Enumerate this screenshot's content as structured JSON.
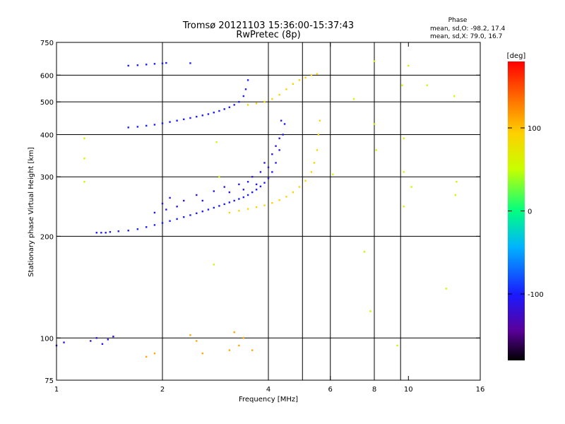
{
  "chart_data": {
    "type": "scatter",
    "title": "Tromsø 20121103 15:36:00-15:37:43",
    "subtitle": "RwPretec (8p)",
    "xlabel": "Frequency [MHz]",
    "ylabel": "Stationary phase Virtual Height [km]",
    "x_scale": "log",
    "y_scale": "log",
    "xlim": [
      1,
      16
    ],
    "ylim": [
      75,
      750
    ],
    "x_ticks": [
      1,
      2,
      4,
      6,
      8,
      10,
      16
    ],
    "x_tick_labels": [
      "1",
      "2",
      "4",
      "6",
      "8",
      "10",
      "16"
    ],
    "x_grid": [
      2,
      4,
      5,
      6,
      8,
      9.5
    ],
    "y_ticks": [
      75,
      100,
      200,
      300,
      400,
      500,
      600,
      750
    ],
    "y_tick_labels": [
      "75",
      "100",
      "200",
      "300",
      "400",
      "500",
      "600",
      "750"
    ],
    "y_grid": [
      100,
      200,
      300,
      400,
      500,
      600
    ],
    "grid": true,
    "stats": {
      "heading": "Phase",
      "line_o": "mean, sd,O: -98.2, 17.4",
      "line_x": "mean, sd,X: 79.0, 16.7"
    },
    "colorbar": {
      "label": "[deg]",
      "range": [
        -180,
        180
      ],
      "ticks": [
        100,
        0,
        -100
      ],
      "tick_labels": [
        "100",
        "0",
        "-100"
      ],
      "colormap": "rainbow"
    },
    "series": [
      {
        "trace": "O-mode lower",
        "phase_deg": -100,
        "points": [
          [
            1.3,
            205
          ],
          [
            1.34,
            205
          ],
          [
            1.38,
            205
          ],
          [
            1.42,
            206
          ],
          [
            1.5,
            207
          ],
          [
            1.6,
            208
          ],
          [
            1.7,
            210
          ],
          [
            1.8,
            213
          ],
          [
            1.9,
            216
          ],
          [
            2.0,
            219
          ],
          [
            2.1,
            222
          ],
          [
            2.2,
            225
          ],
          [
            2.3,
            228
          ],
          [
            2.4,
            231
          ],
          [
            2.5,
            234
          ],
          [
            2.6,
            237
          ],
          [
            2.7,
            240
          ],
          [
            2.8,
            243
          ],
          [
            2.9,
            246
          ],
          [
            3.0,
            249
          ],
          [
            3.1,
            252
          ],
          [
            3.2,
            255
          ],
          [
            3.3,
            258
          ],
          [
            3.4,
            261
          ],
          [
            3.5,
            265
          ],
          [
            3.6,
            270
          ],
          [
            3.7,
            275
          ],
          [
            3.8,
            281
          ],
          [
            3.9,
            288
          ],
          [
            4.0,
            297
          ],
          [
            4.1,
            310
          ],
          [
            4.2,
            330
          ],
          [
            4.3,
            360
          ],
          [
            4.4,
            400
          ],
          [
            4.45,
            430
          ]
        ]
      },
      {
        "trace": "O-mode scatter",
        "phase_deg": -110,
        "points": [
          [
            1.9,
            235
          ],
          [
            2.0,
            250
          ],
          [
            2.05,
            240
          ],
          [
            2.1,
            260
          ],
          [
            2.2,
            245
          ],
          [
            2.3,
            255
          ],
          [
            2.5,
            265
          ],
          [
            2.6,
            255
          ],
          [
            2.8,
            272
          ],
          [
            3.0,
            280
          ],
          [
            3.1,
            270
          ],
          [
            3.3,
            285
          ],
          [
            3.4,
            275
          ],
          [
            3.5,
            290
          ],
          [
            3.6,
            300
          ],
          [
            3.7,
            285
          ],
          [
            3.8,
            310
          ],
          [
            3.9,
            330
          ],
          [
            4.0,
            320
          ],
          [
            4.1,
            350
          ],
          [
            4.2,
            370
          ],
          [
            4.3,
            390
          ],
          [
            4.35,
            440
          ]
        ]
      },
      {
        "trace": "O-mode upper",
        "phase_deg": -100,
        "points": [
          [
            1.6,
            420
          ],
          [
            1.7,
            422
          ],
          [
            1.8,
            425
          ],
          [
            1.9,
            428
          ],
          [
            2.0,
            432
          ],
          [
            2.1,
            436
          ],
          [
            2.2,
            440
          ],
          [
            2.3,
            444
          ],
          [
            2.4,
            448
          ],
          [
            2.5,
            452
          ],
          [
            2.6,
            456
          ],
          [
            2.7,
            460
          ],
          [
            2.8,
            465
          ],
          [
            2.9,
            470
          ],
          [
            3.0,
            476
          ],
          [
            3.1,
            482
          ],
          [
            3.2,
            490
          ],
          [
            3.3,
            500
          ],
          [
            3.4,
            520
          ],
          [
            3.45,
            545
          ],
          [
            3.5,
            580
          ]
        ]
      },
      {
        "trace": "O-mode top",
        "phase_deg": -100,
        "points": [
          [
            1.6,
            640
          ],
          [
            1.7,
            642
          ],
          [
            1.8,
            645
          ],
          [
            1.9,
            648
          ],
          [
            2.0,
            650
          ],
          [
            2.05,
            652
          ],
          [
            2.4,
            651
          ]
        ]
      },
      {
        "trace": "X-mode lower",
        "phase_deg": 90,
        "points": [
          [
            3.1,
            235
          ],
          [
            3.3,
            238
          ],
          [
            3.5,
            241
          ],
          [
            3.7,
            244
          ],
          [
            3.9,
            247
          ],
          [
            4.1,
            251
          ],
          [
            4.3,
            256
          ],
          [
            4.5,
            262
          ],
          [
            4.7,
            270
          ],
          [
            4.9,
            280
          ],
          [
            5.1,
            292
          ],
          [
            5.3,
            310
          ],
          [
            5.4,
            330
          ],
          [
            5.5,
            360
          ],
          [
            5.55,
            400
          ],
          [
            5.6,
            440
          ]
        ]
      },
      {
        "trace": "X-mode upper",
        "phase_deg": 90,
        "points": [
          [
            3.5,
            490
          ],
          [
            3.7,
            495
          ],
          [
            3.9,
            500
          ],
          [
            4.1,
            510
          ],
          [
            4.3,
            525
          ],
          [
            4.5,
            545
          ],
          [
            4.7,
            565
          ],
          [
            4.9,
            580
          ],
          [
            5.1,
            590
          ],
          [
            5.3,
            600
          ],
          [
            5.5,
            605
          ]
        ]
      },
      {
        "trace": "E-region",
        "phase_deg": -110,
        "points": [
          [
            1.0,
            95
          ],
          [
            1.05,
            97
          ],
          [
            1.25,
            98
          ],
          [
            1.3,
            100
          ],
          [
            1.35,
            96
          ],
          [
            1.4,
            99
          ],
          [
            1.45,
            101
          ]
        ]
      },
      {
        "trace": "E-region scatter",
        "phase_deg": 110,
        "points": [
          [
            1.8,
            88
          ],
          [
            1.9,
            90
          ],
          [
            2.4,
            102
          ],
          [
            2.5,
            98
          ],
          [
            2.6,
            90
          ],
          [
            3.1,
            92
          ],
          [
            3.2,
            104
          ],
          [
            3.3,
            95
          ],
          [
            3.4,
            100
          ],
          [
            3.6,
            92
          ]
        ]
      },
      {
        "trace": "isolated points",
        "phase_deg": 60,
        "points": [
          [
            1.2,
            390
          ],
          [
            1.2,
            340
          ],
          [
            1.2,
            290
          ],
          [
            2.85,
            380
          ],
          [
            2.9,
            300
          ],
          [
            2.8,
            165
          ],
          [
            6.1,
            305
          ],
          [
            7.0,
            510
          ],
          [
            7.5,
            180
          ],
          [
            7.8,
            120
          ],
          [
            8.0,
            430
          ],
          [
            8.1,
            360
          ],
          [
            9.3,
            95
          ],
          [
            9.7,
            390
          ],
          [
            9.7,
            310
          ],
          [
            9.7,
            245
          ],
          [
            10.2,
            280
          ],
          [
            11.3,
            560
          ],
          [
            12.8,
            140
          ],
          [
            13.5,
            520
          ],
          [
            13.7,
            290
          ],
          [
            13.6,
            265
          ],
          [
            10.0,
            640
          ],
          [
            8.0,
            660
          ],
          [
            9.6,
            560
          ]
        ]
      }
    ]
  }
}
